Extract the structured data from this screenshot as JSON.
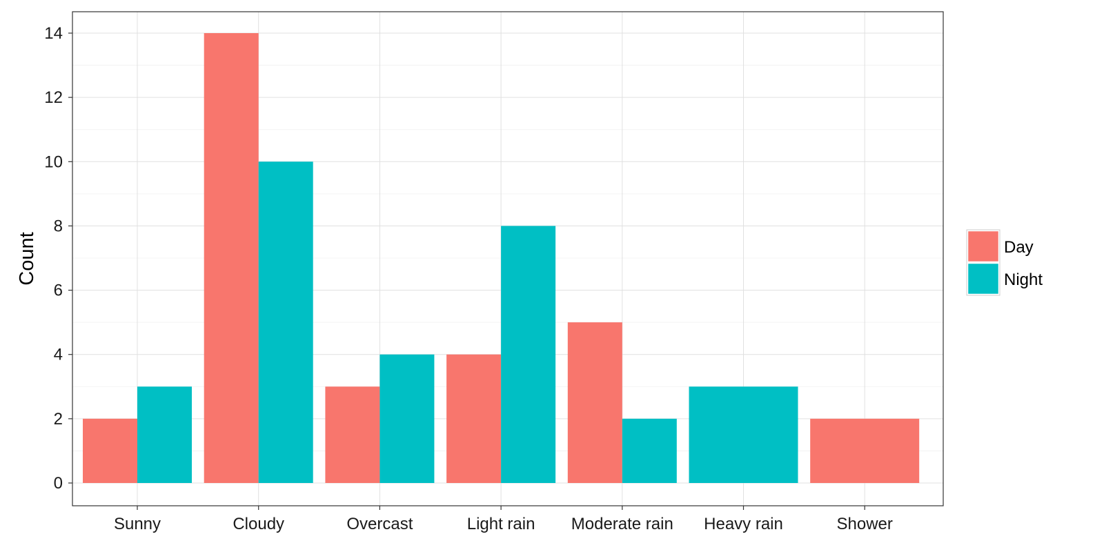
{
  "chart_data": {
    "type": "bar",
    "title": "",
    "xlabel": "",
    "ylabel": "Count",
    "categories": [
      "Sunny",
      "Cloudy",
      "Overcast",
      "Light rain",
      "Moderate rain",
      "Heavy rain",
      "Shower"
    ],
    "series": [
      {
        "name": "Day",
        "color": "#F8766D",
        "values": [
          2,
          14,
          3,
          4,
          5,
          null,
          2
        ]
      },
      {
        "name": "Night",
        "color": "#00BFC4",
        "values": [
          3,
          10,
          4,
          8,
          2,
          3,
          null
        ]
      }
    ],
    "ylim": [
      -0.6,
      14.7
    ],
    "yticks": [
      0,
      2,
      4,
      6,
      8,
      10,
      12,
      14
    ],
    "grid": true,
    "legend_position": "right"
  }
}
